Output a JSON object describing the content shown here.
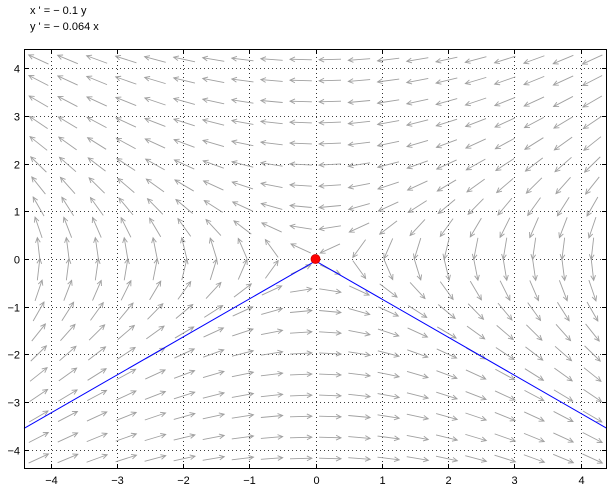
{
  "chart_data": {
    "type": "vector_field",
    "title_lines": [
      "x ' = − 0.1 y",
      "y ' = − 0.064 x"
    ],
    "xlim": [
      -4.4,
      4.4
    ],
    "ylim": [
      -4.4,
      4.4
    ],
    "x_ticks": [
      -4,
      -3,
      -2,
      -1,
      0,
      1,
      2,
      3,
      4
    ],
    "x_tick_labels": [
      "−4",
      "−3",
      "−2",
      "−1",
      "0",
      "1",
      "2",
      "3",
      "4"
    ],
    "y_ticks": [
      4,
      3,
      2,
      1,
      0,
      -1,
      -2,
      -3,
      -4
    ],
    "y_tick_labels": [
      "4",
      "3",
      "2",
      "1",
      "0",
      "−1",
      "−2",
      "−3",
      "−4"
    ],
    "grid": true,
    "field": {
      "dx_coef_y": -0.1,
      "dy_coef_x": -0.064,
      "arrow_color": "#a0a0a0"
    },
    "equilibrium_point": {
      "x": 0,
      "y": 0,
      "color": "#ff0000"
    },
    "trajectory": {
      "color": "#0000ff",
      "points": [
        [
          -4.4,
          -3.55
        ],
        [
          0,
          -0.04
        ],
        [
          4.4,
          -3.55
        ]
      ]
    }
  }
}
